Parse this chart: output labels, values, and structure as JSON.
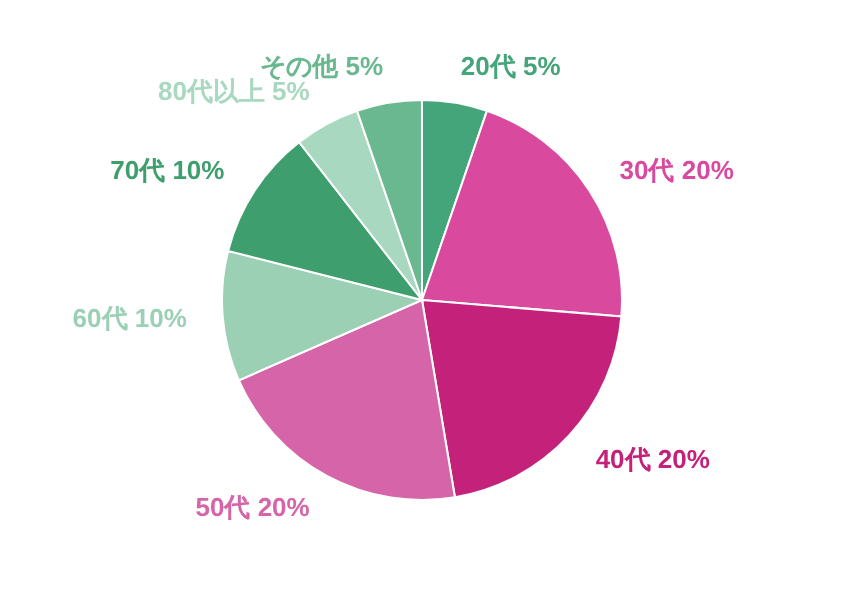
{
  "chart_data": {
    "type": "pie",
    "categories": [
      "20代",
      "30代",
      "40代",
      "50代",
      "60代",
      "70代",
      "80代以上",
      "その他"
    ],
    "values": [
      5,
      20,
      20,
      20,
      10,
      10,
      5,
      5
    ],
    "value_labels": [
      "5%",
      "20%",
      "20%",
      "20%",
      "10%",
      "10%",
      "5%",
      "5%"
    ],
    "colors": [
      "#45a57a",
      "#d94a9f",
      "#c4227a",
      "#d564a8",
      "#9bd0b5",
      "#3f9e6e",
      "#a9d8c0",
      "#6ab890"
    ]
  }
}
